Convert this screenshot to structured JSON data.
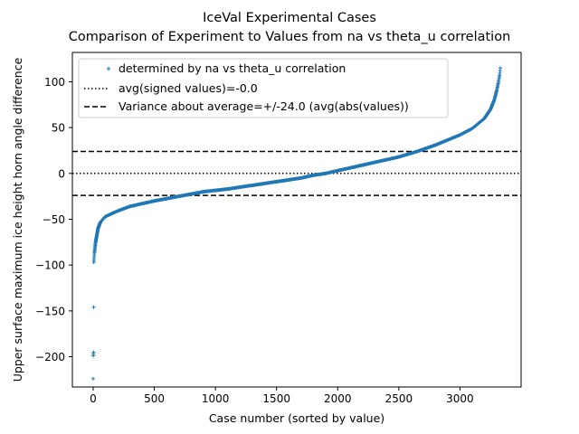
{
  "chart_data": {
    "type": "scatter",
    "title": "IceVal Experimental Cases",
    "subtitle": "Comparison of Experiment to Values from na vs theta_u correlation",
    "xlabel": "Case number (sorted by value)",
    "ylabel": "Upper surface maximum ice height horn angle difference",
    "xlim": [
      -170,
      3500
    ],
    "ylim": [
      -233,
      132
    ],
    "xticks": [
      0,
      500,
      1000,
      1500,
      2000,
      2500,
      3000
    ],
    "yticks": [
      100,
      50,
      0,
      -50,
      -100,
      -150,
      -200
    ],
    "grid": false,
    "legend_position": "upper-left",
    "point_count": 3330,
    "series": [
      {
        "name": "determined by na vs theta_u correlation",
        "kind": "points",
        "color": "#1f77b4",
        "x": [
          0,
          1,
          3,
          5,
          10,
          20,
          40,
          60,
          100,
          200,
          300,
          500,
          700,
          900,
          1100,
          1300,
          1500,
          1700,
          1800,
          1900,
          2000,
          2100,
          2300,
          2500,
          2650,
          2800,
          3000,
          3100,
          3200,
          3250,
          3280,
          3300,
          3315,
          3325,
          3330
        ],
        "y": [
          -224,
          -199,
          -195,
          -97,
          -87,
          -75,
          -60,
          -53,
          -47,
          -41,
          -36,
          -30,
          -25,
          -20,
          -17,
          -13,
          -9,
          -5,
          -2,
          0,
          3,
          6,
          12,
          18,
          24,
          31,
          42,
          49,
          60,
          70,
          80,
          90,
          100,
          108,
          115
        ]
      },
      {
        "name": "avg(signed values)=-0.0",
        "kind": "hline",
        "y": 0,
        "style": "dotted",
        "color": "#000000"
      },
      {
        "name": "Variance about average=+/-24.0 (avg(abs(values))",
        "kind": "hline_pair",
        "y": [
          24,
          -24
        ],
        "style": "dashed",
        "color": "#000000"
      }
    ]
  }
}
